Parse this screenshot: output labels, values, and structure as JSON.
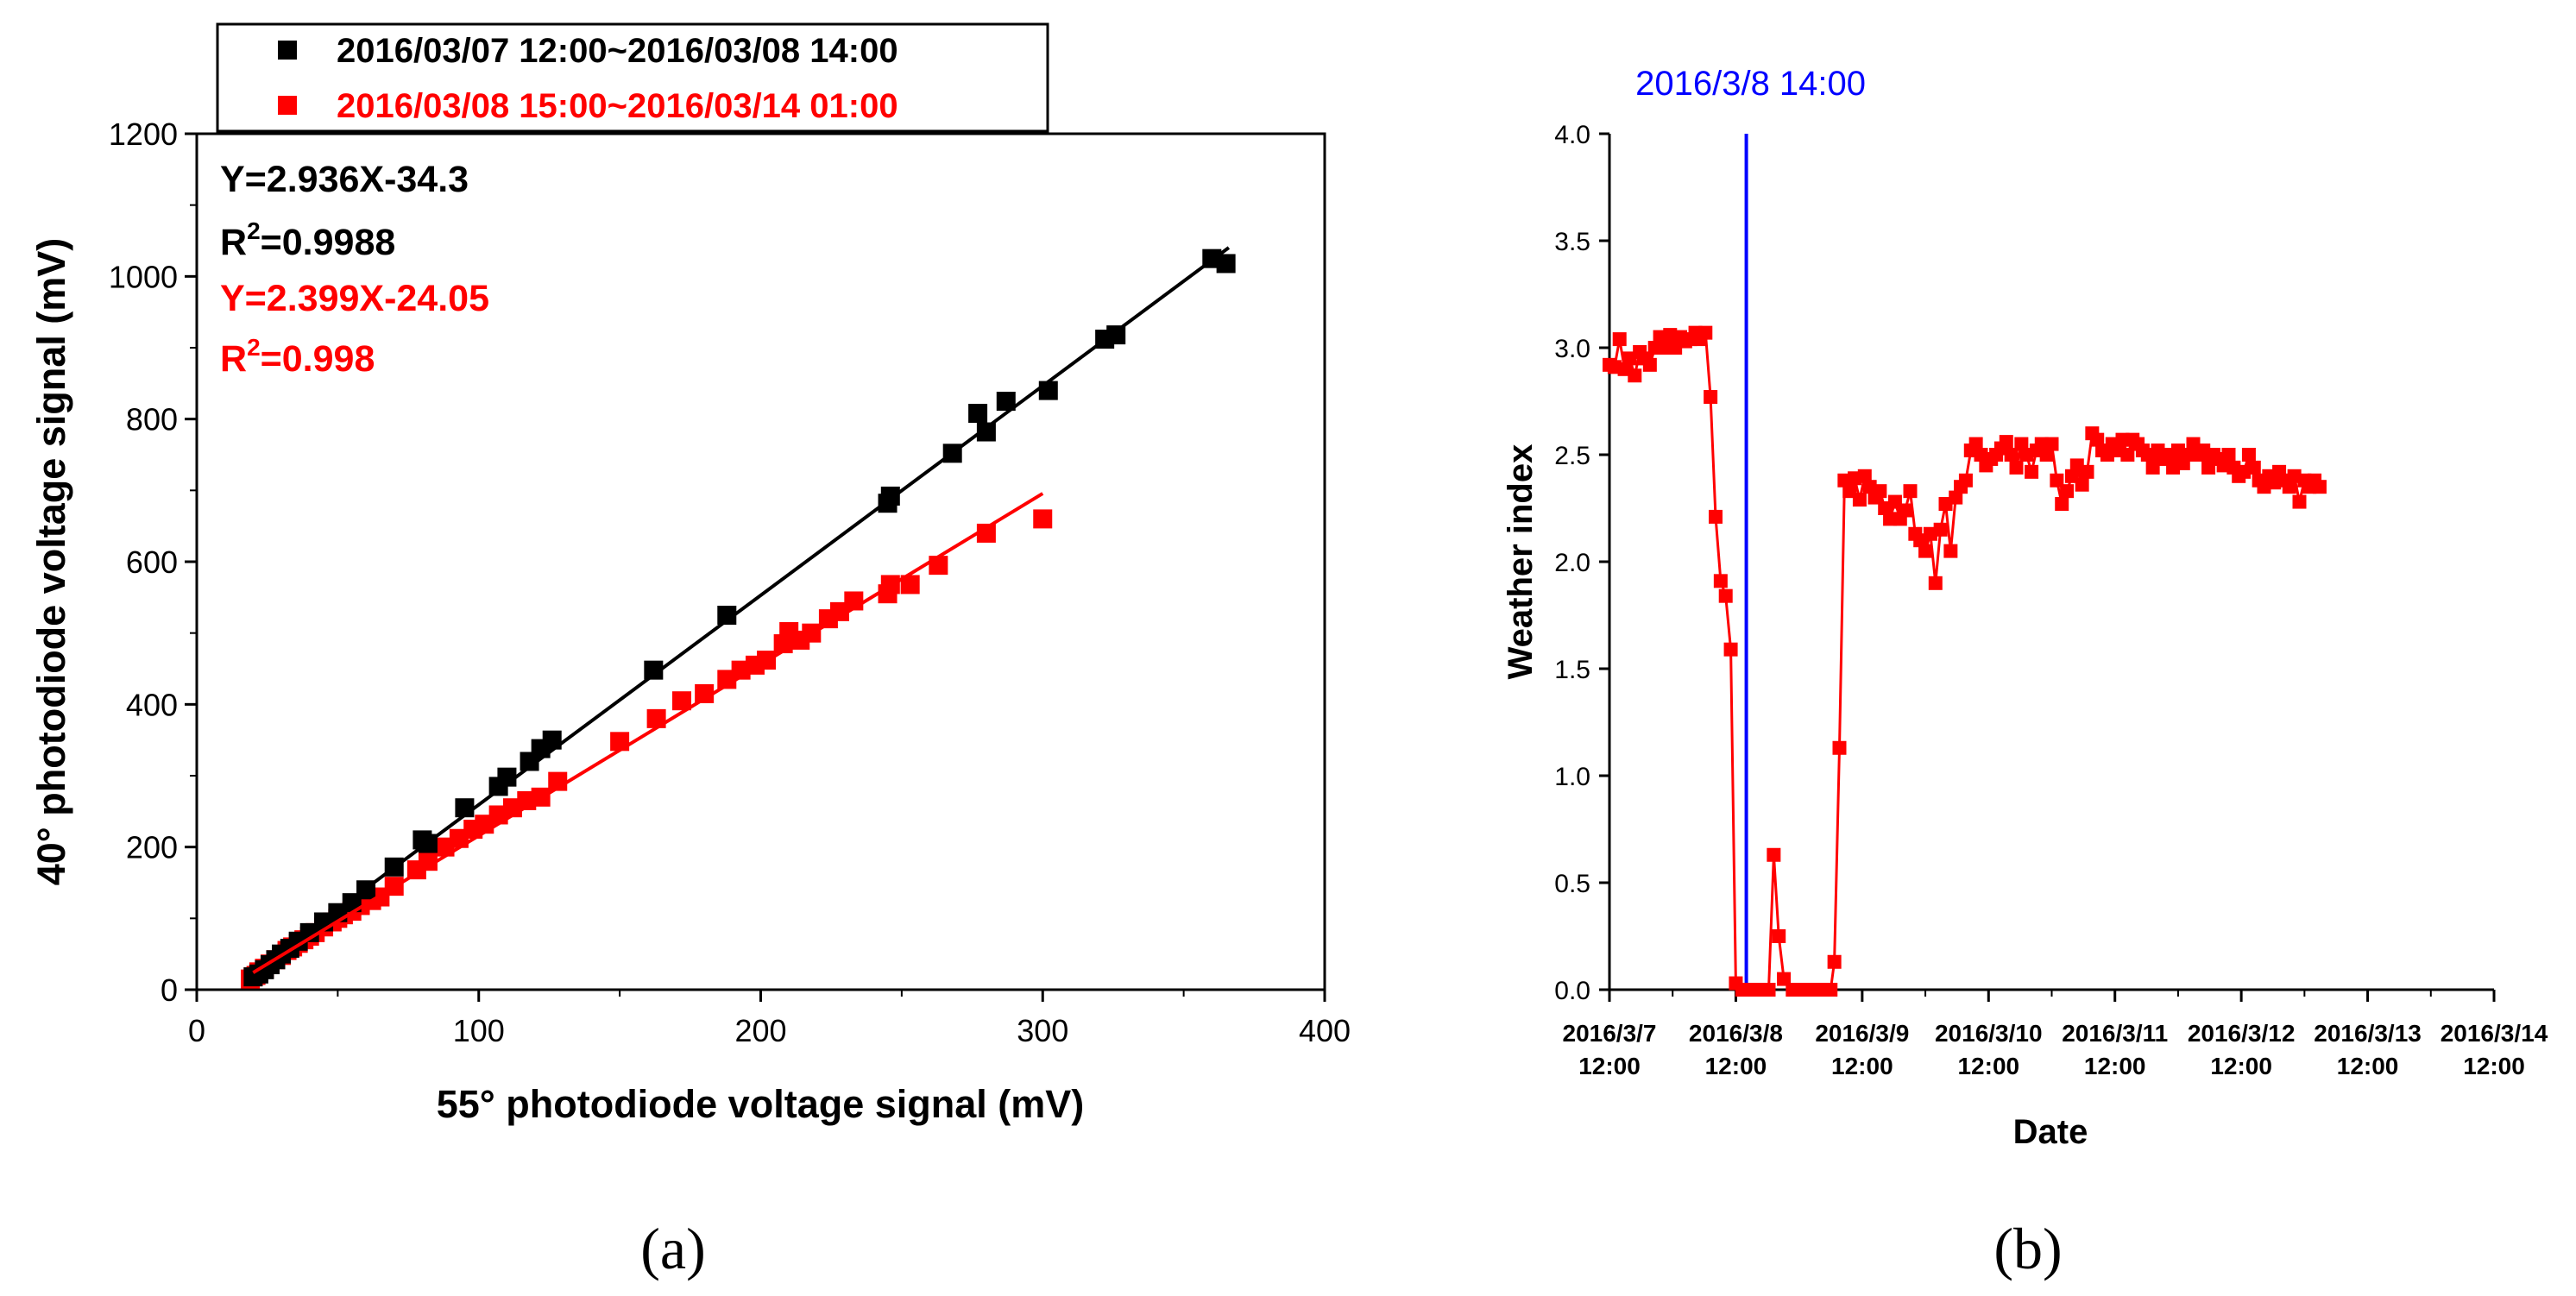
{
  "chart_data": [
    {
      "type": "scatter",
      "panel_label": "(a)",
      "xlabel": "55° photodiode voltage signal (mV)",
      "ylabel": "40° photodiode voltage signal (mV)",
      "xlim": [
        0,
        400
      ],
      "ylim": [
        0,
        1200
      ],
      "xticks": [
        0,
        100,
        200,
        300,
        400
      ],
      "yticks": [
        0,
        200,
        400,
        600,
        800,
        1000,
        1200
      ],
      "legend_position": "top-left",
      "annotations": [
        {
          "text": "Y=2.936X-34.3",
          "color": "#000000"
        },
        {
          "text": "R²=0.9988",
          "color": "#000000"
        },
        {
          "text": "Y=2.399X-24.05",
          "color": "#ff0000"
        },
        {
          "text": "R²=0.998",
          "color": "#ff0000"
        }
      ],
      "series": [
        {
          "name": "2016/03/07 12:00~2016/03/08 14:00",
          "color": "#000000",
          "marker": "square",
          "fit": {
            "slope": 2.936,
            "intercept": -34.3,
            "x_range": [
              22,
              366
            ]
          },
          "points": [
            [
              20,
              18
            ],
            [
              22,
              22
            ],
            [
              24,
              28
            ],
            [
              26,
              35
            ],
            [
              28,
              42
            ],
            [
              30,
              50
            ],
            [
              33,
              58
            ],
            [
              36,
              68
            ],
            [
              40,
              80
            ],
            [
              45,
              95
            ],
            [
              50,
              108
            ],
            [
              55,
              122
            ],
            [
              60,
              140
            ],
            [
              70,
              172
            ],
            [
              80,
              210
            ],
            [
              82,
              205
            ],
            [
              95,
              255
            ],
            [
              107,
              285
            ],
            [
              110,
              298
            ],
            [
              118,
              320
            ],
            [
              122,
              338
            ],
            [
              126,
              350
            ],
            [
              162,
              448
            ],
            [
              188,
              525
            ],
            [
              245,
              682
            ],
            [
              246,
              692
            ],
            [
              268,
              752
            ],
            [
              277,
              808
            ],
            [
              280,
              782
            ],
            [
              287,
              825
            ],
            [
              302,
              840
            ],
            [
              322,
              912
            ],
            [
              326,
              918
            ],
            [
              360,
              1025
            ],
            [
              365,
              1018
            ]
          ]
        },
        {
          "name": "2016/03/08 15:00~2016/03/14 01:00",
          "color": "#ff0000",
          "marker": "square",
          "fit": {
            "slope": 2.399,
            "intercept": -24.05,
            "x_range": [
              20,
              300
            ]
          },
          "points": [
            [
              19,
              15
            ],
            [
              20,
              18
            ],
            [
              21,
              20
            ],
            [
              22,
              25
            ],
            [
              24,
              30
            ],
            [
              26,
              36
            ],
            [
              28,
              42
            ],
            [
              30,
              48
            ],
            [
              32,
              55
            ],
            [
              34,
              60
            ],
            [
              36,
              65
            ],
            [
              38,
              70
            ],
            [
              40,
              75
            ],
            [
              42,
              80
            ],
            [
              45,
              88
            ],
            [
              48,
              95
            ],
            [
              50,
              100
            ],
            [
              52,
              105
            ],
            [
              55,
              110
            ],
            [
              58,
              118
            ],
            [
              62,
              125
            ],
            [
              65,
              130
            ],
            [
              70,
              145
            ],
            [
              78,
              168
            ],
            [
              82,
              180
            ],
            [
              88,
              200
            ],
            [
              93,
              212
            ],
            [
              98,
              225
            ],
            [
              102,
              232
            ],
            [
              107,
              245
            ],
            [
              112,
              255
            ],
            [
              117,
              265
            ],
            [
              122,
              270
            ],
            [
              128,
              292
            ],
            [
              150,
              348
            ],
            [
              163,
              380
            ],
            [
              172,
              405
            ],
            [
              180,
              415
            ],
            [
              188,
              435
            ],
            [
              193,
              448
            ],
            [
              198,
              455
            ],
            [
              202,
              462
            ],
            [
              208,
              485
            ],
            [
              210,
              502
            ],
            [
              214,
              490
            ],
            [
              218,
              500
            ],
            [
              224,
              520
            ],
            [
              228,
              530
            ],
            [
              233,
              545
            ],
            [
              245,
              555
            ],
            [
              246,
              568
            ],
            [
              253,
              568
            ],
            [
              263,
              595
            ],
            [
              280,
              640
            ],
            [
              300,
              660
            ]
          ]
        }
      ]
    },
    {
      "type": "line",
      "panel_label": "(b)",
      "xlabel": "Date",
      "ylabel": "Weather index",
      "xlim": [
        0,
        7
      ],
      "ylim": [
        0,
        4.0
      ],
      "x_unit": "days since 2016/3/7 12:00",
      "yticks": [
        "0.0",
        "0.5",
        "1.0",
        "1.5",
        "2.0",
        "2.5",
        "3.0",
        "3.5",
        "4.0"
      ],
      "xtick_labels": [
        [
          "2016/3/7",
          "12:00"
        ],
        [
          "2016/3/8",
          "12:00"
        ],
        [
          "2016/3/9",
          "12:00"
        ],
        [
          "2016/3/10",
          "12:00"
        ],
        [
          "2016/3/11",
          "12:00"
        ],
        [
          "2016/3/12",
          "12:00"
        ],
        [
          "2016/3/13",
          "12:00"
        ],
        [
          "2016/3/14",
          "12:00"
        ]
      ],
      "vline": {
        "x": 1.083,
        "label": "2016/3/8 14:00",
        "color": "#0000ff"
      },
      "series": [
        {
          "name": "Weather index",
          "color": "#ff0000",
          "marker": "square",
          "points": [
            [
              0.0,
              2.92
            ],
            [
              0.04,
              2.91
            ],
            [
              0.08,
              3.04
            ],
            [
              0.12,
              2.9
            ],
            [
              0.16,
              2.95
            ],
            [
              0.2,
              2.87
            ],
            [
              0.24,
              2.98
            ],
            [
              0.28,
              2.95
            ],
            [
              0.32,
              2.92
            ],
            [
              0.36,
              3.0
            ],
            [
              0.4,
              3.05
            ],
            [
              0.44,
              3.0
            ],
            [
              0.48,
              3.06
            ],
            [
              0.52,
              3.0
            ],
            [
              0.56,
              3.05
            ],
            [
              0.6,
              3.03
            ],
            [
              0.64,
              3.04
            ],
            [
              0.68,
              3.07
            ],
            [
              0.72,
              3.04
            ],
            [
              0.76,
              3.07
            ],
            [
              0.8,
              2.77
            ],
            [
              0.84,
              2.21
            ],
            [
              0.88,
              1.91
            ],
            [
              0.92,
              1.84
            ],
            [
              0.96,
              1.59
            ],
            [
              1.0,
              0.03
            ],
            [
              1.05,
              0.0
            ],
            [
              1.1,
              0.0
            ],
            [
              1.15,
              0.0
            ],
            [
              1.2,
              0.0
            ],
            [
              1.26,
              0.0
            ],
            [
              1.3,
              0.63
            ],
            [
              1.34,
              0.25
            ],
            [
              1.38,
              0.05
            ],
            [
              1.45,
              0.0
            ],
            [
              1.55,
              0.0
            ],
            [
              1.65,
              0.0
            ],
            [
              1.75,
              0.0
            ],
            [
              1.78,
              0.13
            ],
            [
              1.82,
              1.13
            ],
            [
              1.86,
              2.38
            ],
            [
              1.9,
              2.33
            ],
            [
              1.94,
              2.39
            ],
            [
              1.98,
              2.29
            ],
            [
              2.02,
              2.4
            ],
            [
              2.06,
              2.35
            ],
            [
              2.1,
              2.3
            ],
            [
              2.14,
              2.33
            ],
            [
              2.18,
              2.25
            ],
            [
              2.22,
              2.2
            ],
            [
              2.26,
              2.28
            ],
            [
              2.3,
              2.2
            ],
            [
              2.34,
              2.24
            ],
            [
              2.38,
              2.33
            ],
            [
              2.42,
              2.13
            ],
            [
              2.46,
              2.1
            ],
            [
              2.5,
              2.05
            ],
            [
              2.54,
              2.13
            ],
            [
              2.58,
              1.9
            ],
            [
              2.62,
              2.15
            ],
            [
              2.66,
              2.27
            ],
            [
              2.7,
              2.05
            ],
            [
              2.74,
              2.3
            ],
            [
              2.78,
              2.35
            ],
            [
              2.82,
              2.38
            ],
            [
              2.86,
              2.52
            ],
            [
              2.9,
              2.55
            ],
            [
              2.94,
              2.5
            ],
            [
              2.98,
              2.45
            ],
            [
              3.02,
              2.48
            ],
            [
              3.06,
              2.5
            ],
            [
              3.1,
              2.53
            ],
            [
              3.14,
              2.56
            ],
            [
              3.18,
              2.5
            ],
            [
              3.22,
              2.44
            ],
            [
              3.26,
              2.55
            ],
            [
              3.3,
              2.5
            ],
            [
              3.34,
              2.42
            ],
            [
              3.38,
              2.52
            ],
            [
              3.42,
              2.55
            ],
            [
              3.46,
              2.5
            ],
            [
              3.5,
              2.55
            ],
            [
              3.54,
              2.38
            ],
            [
              3.58,
              2.27
            ],
            [
              3.62,
              2.33
            ],
            [
              3.66,
              2.4
            ],
            [
              3.7,
              2.45
            ],
            [
              3.74,
              2.36
            ],
            [
              3.78,
              2.42
            ],
            [
              3.82,
              2.6
            ],
            [
              3.86,
              2.57
            ],
            [
              3.9,
              2.52
            ],
            [
              3.94,
              2.5
            ],
            [
              3.98,
              2.55
            ],
            [
              4.02,
              2.52
            ],
            [
              4.06,
              2.57
            ],
            [
              4.1,
              2.5
            ],
            [
              4.14,
              2.57
            ],
            [
              4.18,
              2.55
            ],
            [
              4.22,
              2.52
            ],
            [
              4.26,
              2.5
            ],
            [
              4.3,
              2.44
            ],
            [
              4.34,
              2.52
            ],
            [
              4.38,
              2.48
            ],
            [
              4.42,
              2.5
            ],
            [
              4.46,
              2.44
            ],
            [
              4.5,
              2.52
            ],
            [
              4.54,
              2.46
            ],
            [
              4.58,
              2.5
            ],
            [
              4.62,
              2.55
            ],
            [
              4.66,
              2.5
            ],
            [
              4.7,
              2.52
            ],
            [
              4.74,
              2.44
            ],
            [
              4.78,
              2.5
            ],
            [
              4.82,
              2.48
            ],
            [
              4.86,
              2.45
            ],
            [
              4.9,
              2.5
            ],
            [
              4.94,
              2.44
            ],
            [
              4.98,
              2.4
            ],
            [
              5.02,
              2.42
            ],
            [
              5.06,
              2.5
            ],
            [
              5.1,
              2.44
            ],
            [
              5.14,
              2.38
            ],
            [
              5.18,
              2.35
            ],
            [
              5.22,
              2.4
            ],
            [
              5.26,
              2.37
            ],
            [
              5.3,
              2.42
            ],
            [
              5.34,
              2.38
            ],
            [
              5.38,
              2.35
            ],
            [
              5.42,
              2.4
            ],
            [
              5.46,
              2.28
            ],
            [
              5.5,
              2.38
            ],
            [
              5.54,
              2.35
            ],
            [
              5.58,
              2.38
            ],
            [
              5.62,
              2.35
            ]
          ]
        }
      ]
    }
  ]
}
